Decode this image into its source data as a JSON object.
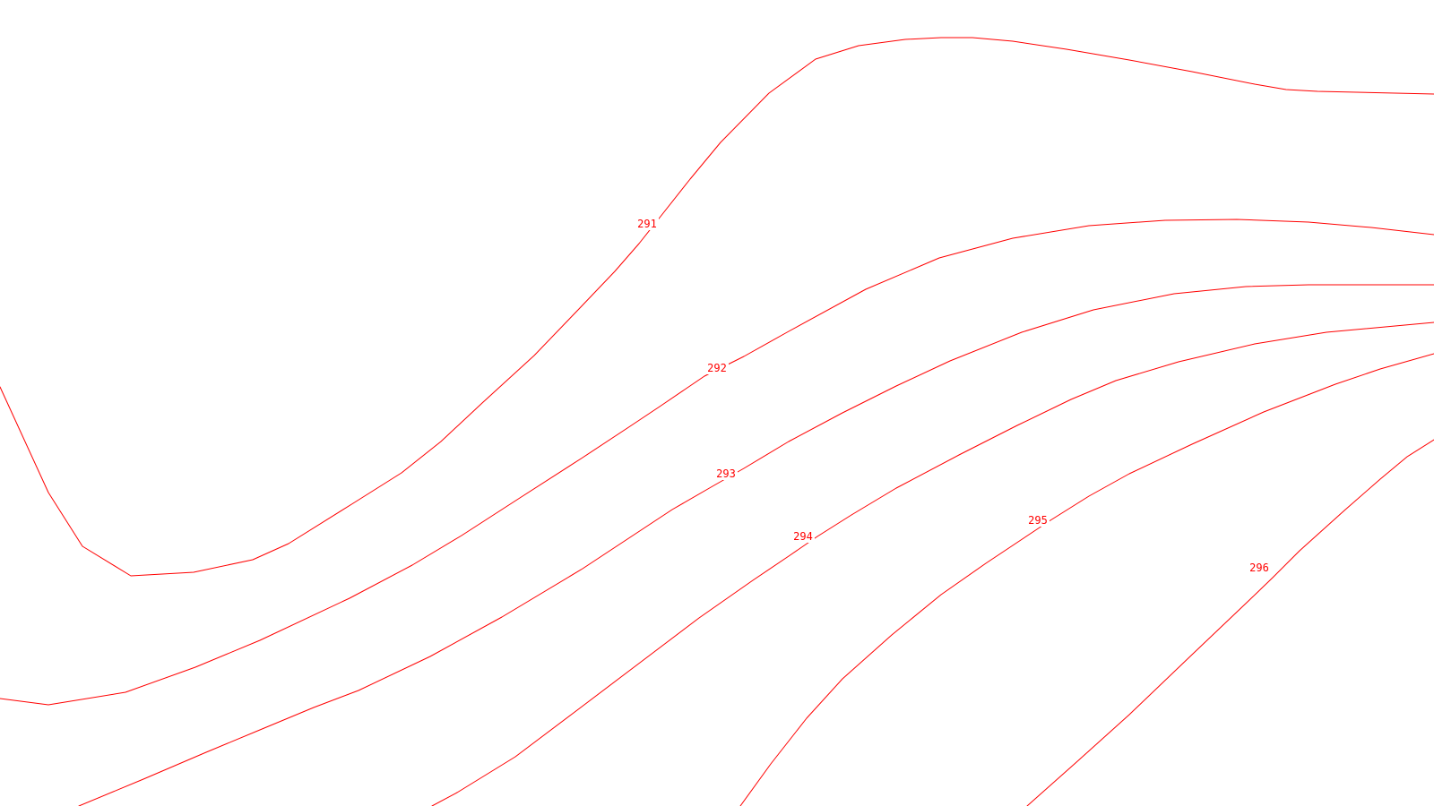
{
  "map": {
    "line_color": "#ff0000",
    "background": "#ffffff",
    "contours": [
      {
        "label": "291"
      },
      {
        "label": "292"
      },
      {
        "label": "293"
      },
      {
        "label": "294"
      },
      {
        "label": "295"
      },
      {
        "label": "296"
      }
    ]
  }
}
